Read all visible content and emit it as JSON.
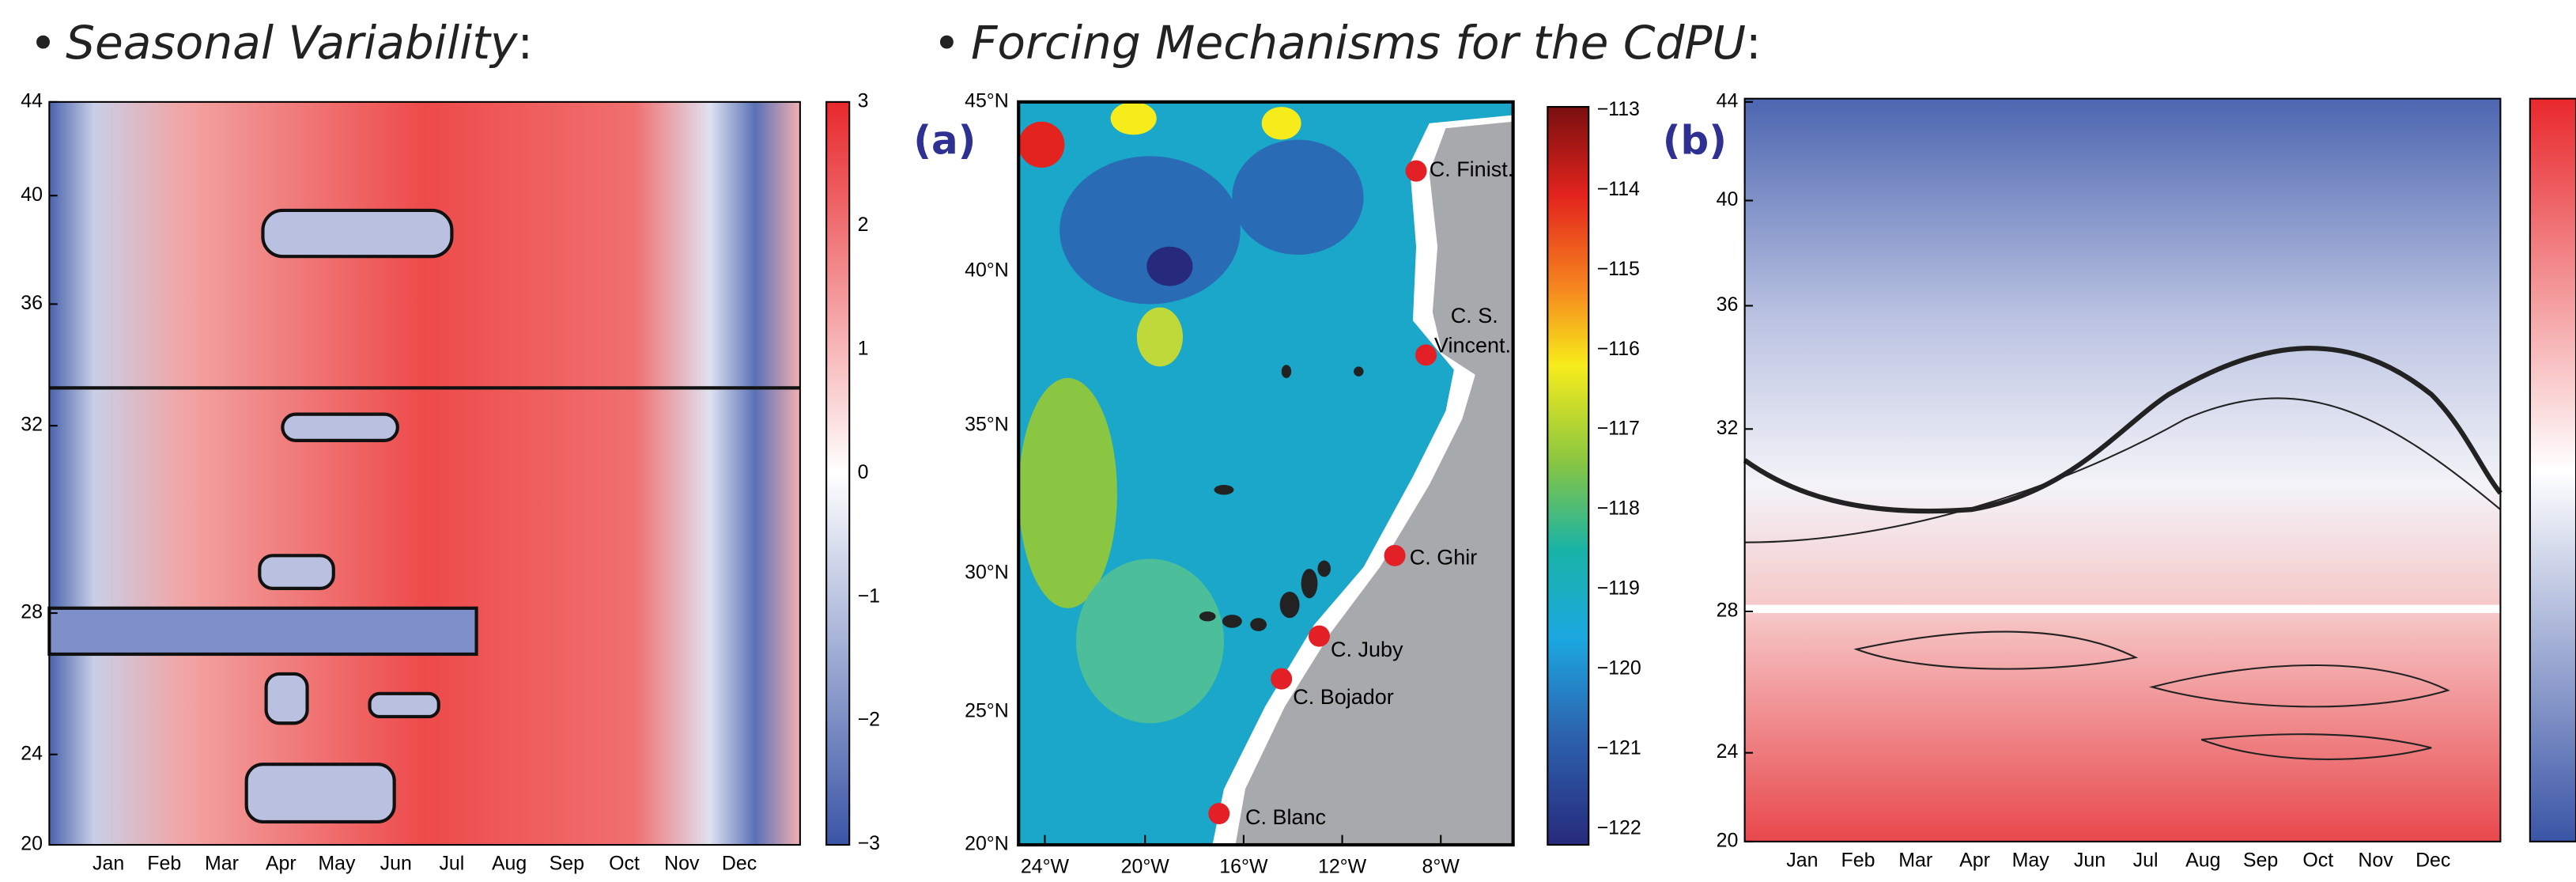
{
  "headings": [
    {
      "text": "Seasonal Variability",
      "suffix": ":"
    },
    {
      "text": "Forcing Mechanisms for the CdPU",
      "suffix": ":"
    }
  ],
  "panel_left": {
    "yticks": [
      "44",
      "40",
      "36",
      "32",
      "28",
      "24",
      "20"
    ],
    "months": [
      "Jan",
      "Feb",
      "Mar",
      "Apr",
      "May",
      "Jun",
      "Jul",
      "Aug",
      "Sep",
      "Oct",
      "Nov",
      "Dec"
    ],
    "colorbar_ticks": [
      "3",
      "2",
      "1",
      "0",
      "−1",
      "−2",
      "−3"
    ]
  },
  "panel_a": {
    "label": "(a)",
    "lat_ticks": [
      "45°N",
      "40°N",
      "35°N",
      "30°N",
      "25°N",
      "20°N"
    ],
    "lon_ticks": [
      "24°W",
      "20°W",
      "16°W",
      "12°W",
      "8°W"
    ],
    "colorbar_ticks": [
      "−113",
      "−114",
      "−115",
      "−116",
      "−117",
      "−118",
      "−119",
      "−120",
      "−121",
      "−122"
    ],
    "places": [
      "C. Finist.",
      "C. S.",
      "Vincent.",
      "C. Ghir",
      "C. Juby",
      "C. Bojador",
      "C. Blanc"
    ]
  },
  "panel_b": {
    "label": "(b)",
    "yticks": [
      "44",
      "40",
      "36",
      "32",
      "28",
      "24",
      "20"
    ],
    "months": [
      "Jan",
      "Feb",
      "Mar",
      "Apr",
      "May",
      "Jun",
      "Jul",
      "Aug",
      "Sep",
      "Oct",
      "Nov",
      "Dec"
    ]
  }
}
